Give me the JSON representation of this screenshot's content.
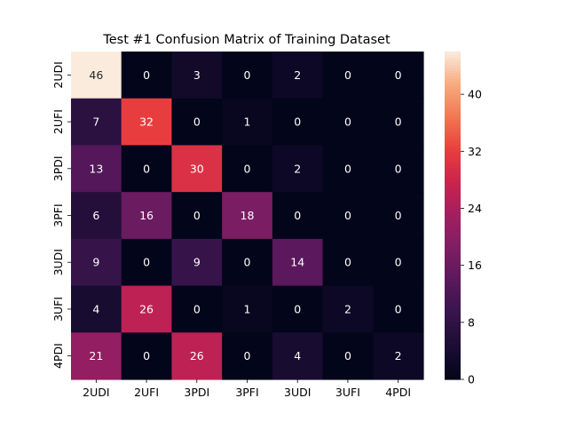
{
  "chart_data": {
    "type": "heatmap",
    "title": "Test #1 Confusion Matrix of Training Dataset",
    "xlabel": "",
    "ylabel": "",
    "row_labels": [
      "2UDI",
      "2UFI",
      "3PDI",
      "3PFI",
      "3UDI",
      "3UFI",
      "4PDI"
    ],
    "col_labels": [
      "2UDI",
      "2UFI",
      "3PDI",
      "3PFI",
      "3UDI",
      "3UFI",
      "4PDI"
    ],
    "values": [
      [
        46,
        0,
        3,
        0,
        2,
        0,
        0
      ],
      [
        7,
        32,
        0,
        1,
        0,
        0,
        0
      ],
      [
        13,
        0,
        30,
        0,
        2,
        0,
        0
      ],
      [
        6,
        16,
        0,
        18,
        0,
        0,
        0
      ],
      [
        9,
        0,
        9,
        0,
        14,
        0,
        0
      ],
      [
        4,
        26,
        0,
        1,
        0,
        2,
        0
      ],
      [
        21,
        0,
        26,
        0,
        4,
        0,
        2
      ]
    ],
    "colorbar": {
      "min": 0,
      "max": 46,
      "ticks": [
        0,
        8,
        16,
        24,
        32,
        40
      ]
    },
    "colormap": "rocket"
  }
}
